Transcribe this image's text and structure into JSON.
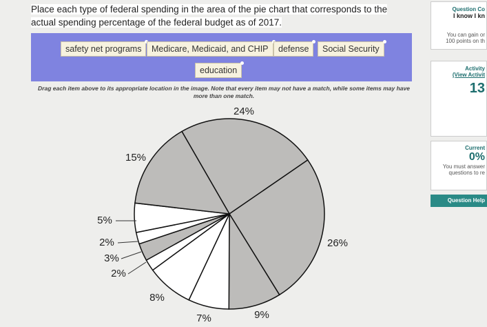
{
  "question": "Place each type of federal spending in the area of the pie chart that corresponds to the actual spending percentage of the federal budget as of 2017.",
  "items": [
    "safety net programs",
    "Medicare, Medicaid, and CHIP",
    "defense",
    "Social Security",
    "education"
  ],
  "instructions": "Drag each item above to its appropriate location in the image. Note that every item may not have a match, while some items may have more than one match.",
  "pie": {
    "slices": [
      {
        "value": 24,
        "label": "24%",
        "color": "#bdbcba"
      },
      {
        "value": 26,
        "label": "26%",
        "color": "#bdbcba"
      },
      {
        "value": 9,
        "label": "9%",
        "color": "#bdbcba"
      },
      {
        "value": 7,
        "label": "7%",
        "color": "#ffffff"
      },
      {
        "value": 8,
        "label": "8%",
        "color": "#ffffff"
      },
      {
        "value": 2,
        "label": "2%",
        "color": "#ffffff"
      },
      {
        "value": 3,
        "label": "3%",
        "color": "#bdbcba"
      },
      {
        "value": 2,
        "label": "2%",
        "color": "#ffffff"
      },
      {
        "value": 5,
        "label": "5%",
        "color": "#ffffff"
      },
      {
        "value": 15,
        "label": "15%",
        "color": "#bdbcba"
      }
    ]
  },
  "sidebar": {
    "question_completion": "Question Co",
    "know": "I know I kn",
    "gain1": "You can gain or",
    "gain2": "100 points on th",
    "activity": "Activity",
    "view_activity": "(View Activit",
    "score": "13",
    "current": "Current",
    "percent": "0%",
    "must1": "You must answer",
    "must2": "questions to re",
    "help": "Question Help"
  }
}
